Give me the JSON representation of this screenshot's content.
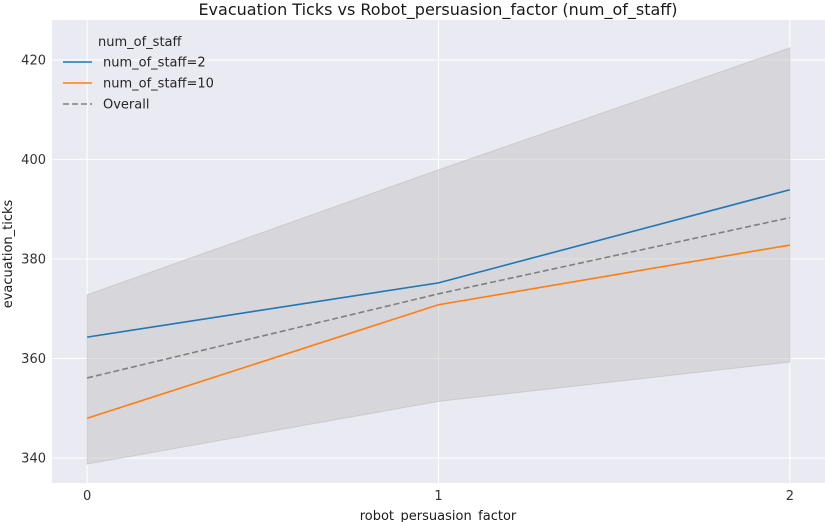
{
  "chart_data": {
    "type": "line",
    "title": "Evacuation Ticks vs Robot_persuasion_factor (num_of_staff)",
    "xlabel": "robot_persuasion_factor",
    "ylabel": "evacuation_ticks",
    "x": [
      0,
      1,
      2
    ],
    "x_ticks": [
      0,
      1,
      2
    ],
    "xlim": [
      -0.1,
      2.1
    ],
    "y_ticks": [
      340,
      360,
      380,
      400,
      420
    ],
    "ylim": [
      335,
      428
    ],
    "grid": true,
    "legend": {
      "title": "num_of_staff",
      "placement": "top-left"
    },
    "series": [
      {
        "name": "num_of_staff=2",
        "values": [
          364.3,
          375.2,
          393.9
        ],
        "color": "#1f77b4",
        "dash": false
      },
      {
        "name": "num_of_staff=10",
        "values": [
          348.0,
          370.8,
          382.8
        ],
        "color": "#ff7f0e",
        "dash": false
      },
      {
        "name": "Overall",
        "values": [
          356.1,
          373.0,
          388.3
        ],
        "color": "#808080",
        "dash": true
      }
    ],
    "confidence_band": {
      "lower": [
        338.8,
        351.4,
        359.3
      ],
      "upper": [
        372.8,
        397.9,
        422.4
      ],
      "color": "#bebebe"
    },
    "background_color": "#eaeaf2"
  }
}
